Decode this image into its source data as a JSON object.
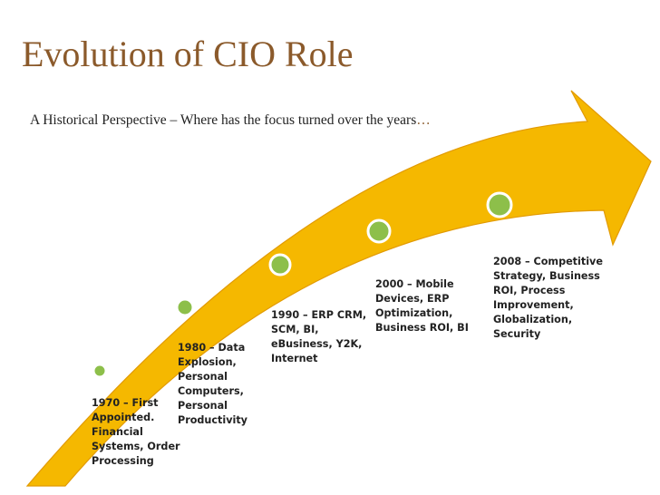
{
  "title": "Evolution of CIO Role",
  "subtitle": "A Historical Perspective – Where has the focus turned over the years",
  "subtitle_ellipsis": "…",
  "colors": {
    "title": "#8B5A2B",
    "arrow_fill": "#F5B800",
    "arrow_edge": "#E29A00",
    "milestone_fill": "#8DBF4A",
    "milestone_ring": "#FFFFFF"
  },
  "milestones": [
    {
      "label": "1970 – First\nAppointed.\nFinancial\nSystems, Order\nProcessing"
    },
    {
      "label": "1980 – Data\nExplosion,\nPersonal\nComputers,\nPersonal\nProductivity"
    },
    {
      "label": "1990  –  ERP CRM,\nSCM, BI,\neBusiness,  Y2K,\nInternet"
    },
    {
      "label": "2000 – Mobile\nDevices, ERP\nOptimization,\nBusiness ROI, BI"
    },
    {
      "label": "2008 – Competitive\nStrategy, Business\nROI, Process\nImprovement,\nGlobalization,\nSecurity"
    }
  ]
}
